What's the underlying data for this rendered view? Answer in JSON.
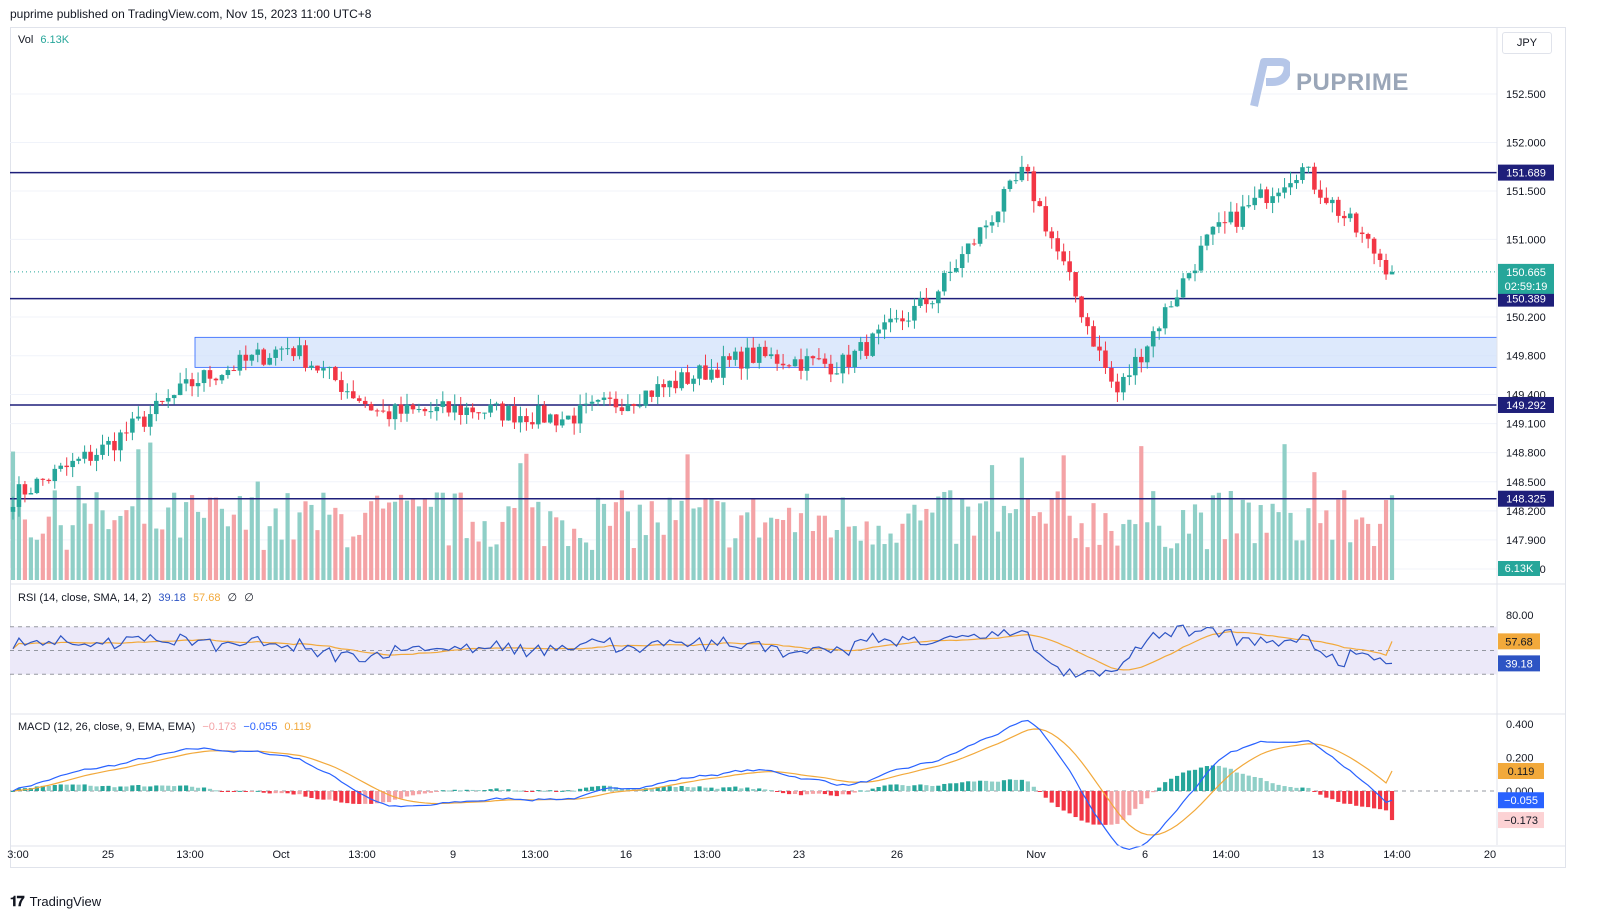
{
  "header": {
    "publisher_text": "puprime published on TradingView.com, Nov 15, 2023 11:00 UTC+8"
  },
  "footer": {
    "brand": "TradingView",
    "logo_icon": "tradingview-logo-icon"
  },
  "watermark": {
    "brand_text": "PUPRIME",
    "icon": "puprime-logo-icon"
  },
  "currency": "JPY",
  "colors": {
    "up": "#26a69a",
    "down": "#f23645",
    "vol_up": "#8fcfc7",
    "vol_down": "#f4a3a6",
    "level_line": "#1e1f7a",
    "zone_fill": "#cfe0fb",
    "zone_stroke": "#2962ff",
    "rsi_line": "#2d54c4",
    "rsi_sma": "#f2a93b",
    "rsi_band": "#ece9f9",
    "macd_line": "#2962ff",
    "signal_line": "#f2a93b",
    "last_price_tag": "#26a69a"
  },
  "chart_data": [
    {
      "type": "candlestick",
      "symbol_currency": "JPY",
      "x_ticks": [
        "3:00",
        "25",
        "13:00",
        "Oct",
        "13:00",
        "9",
        "13:00",
        "16",
        "13:00",
        "23",
        "26",
        "Nov",
        "6",
        "14:00",
        "13",
        "14:00",
        "20"
      ],
      "y_ticks": [
        152.5,
        152.0,
        151.5,
        151.0,
        150.2,
        149.8,
        149.4,
        149.1,
        148.8,
        148.5,
        148.2,
        147.9,
        147.6
      ],
      "y_range": [
        147.6,
        152.85
      ],
      "horizontal_levels": [
        151.689,
        150.389,
        149.292,
        148.325
      ],
      "zone": {
        "low": 149.68,
        "high": 149.99,
        "from_x_tick": "13:00"
      },
      "last_price": 150.665,
      "countdown": "02:59:19",
      "key_points": [
        {
          "x": "3:00",
          "close": 148.35
        },
        {
          "x": "25",
          "close": 148.85
        },
        {
          "x": "13:00",
          "close": 149.55
        },
        {
          "x": "Oct",
          "close": 149.9
        },
        {
          "x": "13:00",
          "close": 149.2
        },
        {
          "x": "9",
          "close": 149.25
        },
        {
          "x": "13:00",
          "close": 149.15
        },
        {
          "x": "16",
          "close": 149.45
        },
        {
          "x": "13:00",
          "close": 149.8
        },
        {
          "x": "23",
          "close": 149.7
        },
        {
          "x": "26",
          "close": 150.4
        },
        {
          "x": "Nov",
          "close": 151.7
        },
        {
          "x": "6",
          "close": 149.4
        },
        {
          "x": "14:00",
          "close": 151.0
        },
        {
          "x": "13",
          "close": 151.75
        },
        {
          "x": "14:00",
          "close": 150.665
        }
      ],
      "volume": {
        "label": "Vol",
        "value": "6.13K"
      }
    },
    {
      "type": "line",
      "title": "RSI (14, close, SMA, 14, 2)",
      "values_text": [
        "39.18",
        "57.68",
        "∅",
        "∅"
      ],
      "y_ticks": [
        "80.00"
      ],
      "current_rsi": 39.18,
      "current_sma": 57.68,
      "bands": [
        70,
        30
      ]
    },
    {
      "type": "line",
      "title": "MACD (12, 26, close, 9, EMA, EMA)",
      "values_text": [
        "−0.173",
        "−0.055",
        "0.119"
      ],
      "y_ticks": [
        "0.400",
        "0.200",
        "0.000"
      ],
      "histogram": -0.173,
      "macd": -0.055,
      "signal": 0.119
    }
  ]
}
